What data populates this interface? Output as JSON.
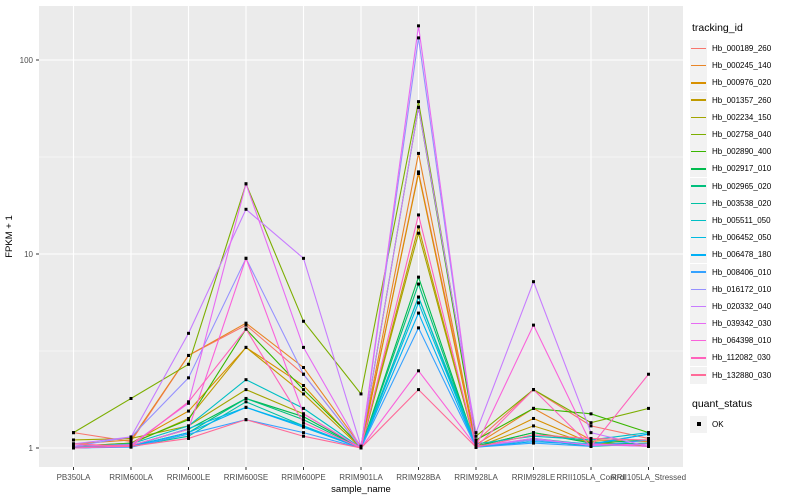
{
  "chart_data": {
    "type": "line",
    "title": "",
    "xlabel": "sample_name",
    "ylabel": "FPKM + 1",
    "y_scale": "log10",
    "y_ticks": [
      1,
      10,
      100
    ],
    "y_minor_ticks": [
      3.1623,
      31.623
    ],
    "ylim": [
      0.93,
      170
    ],
    "grid": true,
    "panel_bg": "#ebebeb",
    "grid_color": "#ffffff",
    "tick_label_color": "#4d4d4d",
    "axis_title_color": "#000000",
    "point_color": "#000000",
    "point_shape": "square",
    "categories": [
      "PB350LA",
      "RRIM600LA",
      "RRIM600LE",
      "RRIM600SE",
      "RRIM600PE",
      "RRIM901LA",
      "RRIM928BA",
      "RRIM928LA",
      "RRIM928LE",
      "RRII105LA_Control",
      "RRII105LA_Stressed"
    ],
    "legend": {
      "title": "tracking_id",
      "position": "right"
    },
    "quant_legend": {
      "title": "quant_status",
      "items": [
        {
          "label": "OK",
          "marker": "black-square"
        }
      ]
    },
    "series": [
      {
        "name": "Hb_000189_260",
        "color": "#F8766D",
        "values": [
          1.2,
          1.08,
          3.0,
          4.3,
          2.4,
          1.0,
          26.5,
          1.08,
          2.0,
          1.3,
          1.12
        ]
      },
      {
        "name": "Hb_000245_140",
        "color": "#E88526",
        "values": [
          1.05,
          1.1,
          3.0,
          4.4,
          2.6,
          1.02,
          33.0,
          1.04,
          1.6,
          1.1,
          1.08
        ]
      },
      {
        "name": "Hb_000976_020",
        "color": "#D89000",
        "values": [
          1.02,
          1.06,
          1.55,
          3.3,
          2.1,
          1.0,
          26.0,
          1.02,
          1.42,
          1.06,
          1.05
        ]
      },
      {
        "name": "Hb_001357_260",
        "color": "#C09B00",
        "values": [
          1.01,
          1.05,
          1.42,
          3.3,
          1.9,
          1.0,
          13.8,
          1.01,
          1.3,
          1.05,
          1.02
        ]
      },
      {
        "name": "Hb_002234_150",
        "color": "#A3A500",
        "values": [
          1.1,
          1.12,
          1.3,
          2.0,
          1.5,
          1.0,
          12.8,
          1.02,
          1.2,
          1.08,
          1.02
        ]
      },
      {
        "name": "Hb_002758_040",
        "color": "#7CAE00",
        "values": [
          1.2,
          1.8,
          2.7,
          23.0,
          4.5,
          1.9,
          61.0,
          1.15,
          2.0,
          1.35,
          1.6
        ]
      },
      {
        "name": "Hb_002890_400",
        "color": "#39B600",
        "values": [
          1.02,
          1.06,
          1.4,
          4.1,
          2.0,
          1.02,
          57.0,
          1.1,
          1.6,
          1.5,
          1.2
        ]
      },
      {
        "name": "Hb_002917_010",
        "color": "#00BB4E",
        "values": [
          1.01,
          1.03,
          1.25,
          1.8,
          1.45,
          1.0,
          7.6,
          1.02,
          1.2,
          1.06,
          1.1
        ]
      },
      {
        "name": "Hb_002965_020",
        "color": "#00BF7D",
        "values": [
          1.01,
          1.02,
          1.2,
          1.8,
          1.4,
          1.0,
          7.0,
          1.01,
          1.12,
          1.04,
          1.06
        ]
      },
      {
        "name": "Hb_003538_020",
        "color": "#00C1A3",
        "values": [
          1.0,
          1.02,
          1.15,
          1.73,
          1.3,
          1.0,
          6.0,
          1.01,
          1.1,
          1.02,
          1.05
        ]
      },
      {
        "name": "Hb_005511_050",
        "color": "#00BFC4",
        "values": [
          1.02,
          1.05,
          1.3,
          2.25,
          1.6,
          1.0,
          6.0,
          1.05,
          1.15,
          1.1,
          1.2
        ]
      },
      {
        "name": "Hb_006452_050",
        "color": "#00BAE0",
        "values": [
          1.0,
          1.02,
          1.26,
          1.62,
          1.3,
          1.0,
          5.6,
          1.02,
          1.1,
          1.05,
          1.18
        ]
      },
      {
        "name": "Hb_006478_180",
        "color": "#00B0F6",
        "values": [
          1.0,
          1.02,
          1.2,
          1.62,
          1.28,
          1.0,
          4.96,
          1.01,
          1.08,
          1.04,
          1.18
        ]
      },
      {
        "name": "Hb_008406_010",
        "color": "#35A2FF",
        "values": [
          1.0,
          1.01,
          1.18,
          1.4,
          1.2,
          1.0,
          4.16,
          1.01,
          1.06,
          1.02,
          1.1
        ]
      },
      {
        "name": "Hb_016172_010",
        "color": "#9590FF",
        "values": [
          1.02,
          1.14,
          2.3,
          9.5,
          2.4,
          1.0,
          130.0,
          1.02,
          1.1,
          1.04,
          1.02
        ]
      },
      {
        "name": "Hb_020332_040",
        "color": "#C77CFF",
        "values": [
          1.05,
          1.14,
          3.9,
          17.0,
          9.5,
          1.02,
          57.0,
          1.2,
          7.2,
          1.2,
          1.02
        ]
      },
      {
        "name": "Hb_039342_030",
        "color": "#E76BF3",
        "values": [
          1.02,
          1.04,
          1.7,
          23.0,
          3.3,
          1.0,
          150.0,
          1.02,
          1.12,
          1.03,
          1.05
        ]
      },
      {
        "name": "Hb_064398_010",
        "color": "#FA62DB",
        "values": [
          1.0,
          1.03,
          1.25,
          9.5,
          1.5,
          1.0,
          2.5,
          1.02,
          4.3,
          1.05,
          1.02
        ]
      },
      {
        "name": "Hb_112082_030",
        "color": "#FF62BC",
        "values": [
          1.0,
          1.02,
          1.73,
          4.1,
          1.35,
          1.0,
          15.9,
          1.01,
          2.0,
          1.02,
          2.4
        ]
      },
      {
        "name": "Hb_132880_030",
        "color": "#FF6A98",
        "values": [
          1.05,
          1.02,
          1.12,
          1.4,
          1.15,
          1.0,
          2.0,
          1.01,
          1.17,
          1.12,
          1.1
        ]
      }
    ]
  }
}
